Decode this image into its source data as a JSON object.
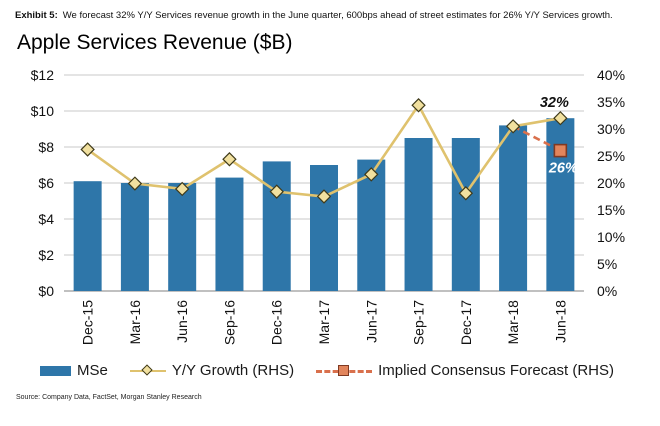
{
  "page": {
    "exhibit_label": "Exhibit 5:",
    "exhibit_caption": "We forecast 32% Y/Y Services revenue growth in the June quarter, 600bps ahead of street estimates for 26% Y/Y Services growth.",
    "source": "Source: Company Data, FactSet, Morgan Stanley Research"
  },
  "chart_data": {
    "type": "bar",
    "title": "Apple Services Revenue ($B)",
    "categories": [
      "Dec-15",
      "Mar-16",
      "Jun-16",
      "Sep-16",
      "Dec-16",
      "Mar-17",
      "Jun-17",
      "Sep-17",
      "Dec-17",
      "Mar-18",
      "Jun-18"
    ],
    "series": [
      {
        "name": "MSe",
        "type": "bar",
        "axis": "left",
        "values": [
          6.1,
          6.0,
          6.0,
          6.3,
          7.2,
          7.0,
          7.3,
          8.5,
          8.5,
          9.2,
          9.6
        ],
        "color": "#2E76A9"
      },
      {
        "name": "Y/Y Growth (RHS)",
        "type": "line",
        "axis": "right",
        "values": [
          26.2,
          19.9,
          18.9,
          24.4,
          18.4,
          17.5,
          21.6,
          34.4,
          18.1,
          30.5,
          32.0
        ],
        "color": "#DFC26E",
        "marker": "diamond",
        "marker_fill": "#F1E09F",
        "marker_border": "#3F3A1A"
      },
      {
        "name": "Implied Consensus Forecast (RHS)",
        "type": "dashed-line",
        "axis": "right",
        "category_indexes": [
          9,
          10
        ],
        "values": [
          30.5,
          26.0
        ],
        "color": "#D9704C",
        "marker": "square",
        "marker_fill": "#E2855C",
        "marker_border": "#7F3922"
      }
    ],
    "left_axis": {
      "title": "",
      "min": 0,
      "max": 12,
      "ticks": [
        "$0",
        "$2",
        "$4",
        "$6",
        "$8",
        "$10",
        "$12"
      ]
    },
    "right_axis": {
      "title": "",
      "min": 0,
      "max": 40,
      "ticks": [
        "0%",
        "5%",
        "10%",
        "15%",
        "20%",
        "25%",
        "30%",
        "35%",
        "40%"
      ]
    },
    "annotations": [
      {
        "text": "32%",
        "category": "Jun-18",
        "axis": "right",
        "value": 32.0,
        "placement": "above",
        "color": "#111111"
      },
      {
        "text": "26%",
        "category": "Jun-18",
        "axis": "right",
        "value": 26.0,
        "placement": "below",
        "color": "#ffffff"
      }
    ],
    "grid": true,
    "legend_position": "bottom",
    "colors": {
      "grid": "#C9C9C9",
      "axis": "#9A9A9A",
      "tick_text": "#111111"
    }
  },
  "legend": {
    "items": [
      {
        "label": "MSe"
      },
      {
        "label": "Y/Y Growth (RHS)"
      },
      {
        "label": "Implied Consensus Forecast (RHS)"
      }
    ]
  }
}
